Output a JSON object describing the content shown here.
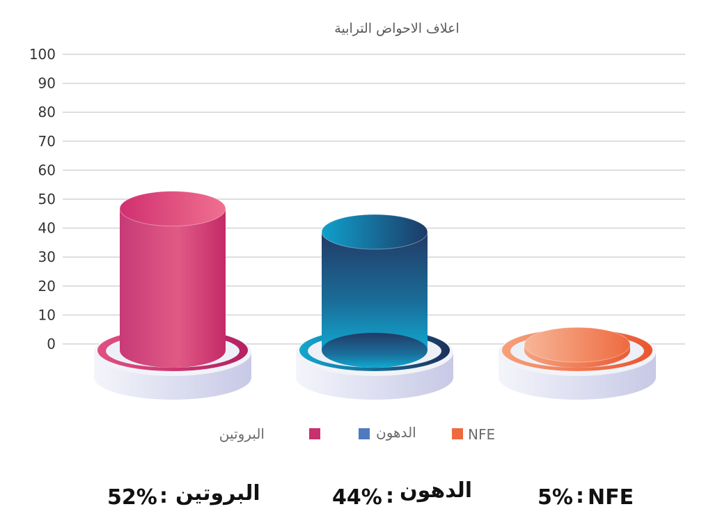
{
  "chart_data": {
    "type": "bar",
    "title": "اعلاف الاحواض الترابية",
    "xlabel": "",
    "ylabel": "",
    "ylim": [
      0,
      100
    ],
    "yticks": [
      0,
      10,
      20,
      30,
      40,
      50,
      60,
      70,
      80,
      90,
      100
    ],
    "grid": true,
    "legend_position": "bottom",
    "categories": [
      "البروتين",
      "الدهون",
      "NFE"
    ],
    "values": [
      52,
      44,
      5
    ],
    "colors": [
      "#c8306e",
      "#1e9ec0",
      "#ee6a3f"
    ],
    "legend": [
      {
        "label": "البروتين",
        "color": "#c8306e"
      },
      {
        "label": "الدهون",
        "color": "#4f7ac0"
      },
      {
        "label": "NFE",
        "color": "#ee6a3f"
      }
    ]
  },
  "captions": [
    {
      "label": "البروتين",
      "value": "52%"
    },
    {
      "label": "الدهون",
      "value": "44%"
    },
    {
      "label": "NFE",
      "value": "5%"
    }
  ]
}
